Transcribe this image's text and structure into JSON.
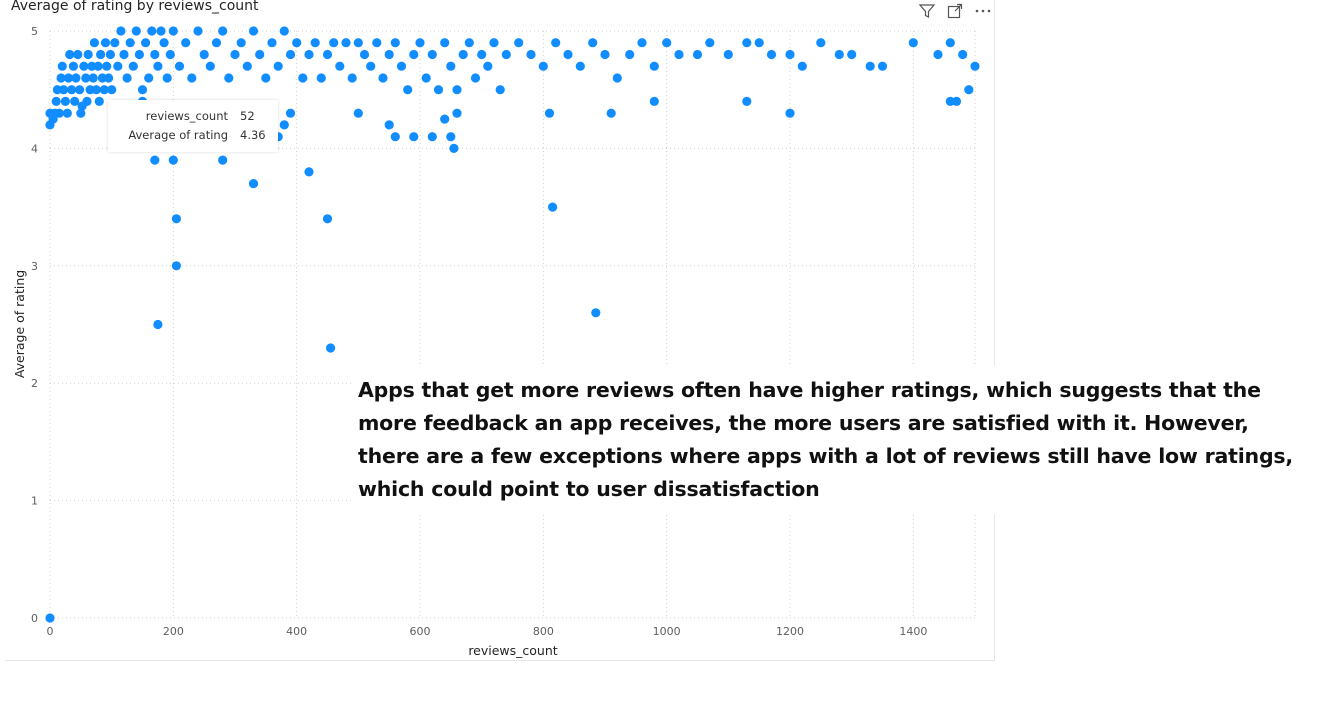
{
  "visual": {
    "title": "Average of rating by reviews_count"
  },
  "header_icons": [
    {
      "name": "filter-icon"
    },
    {
      "name": "focus-mode-icon"
    },
    {
      "name": "more-options-icon"
    }
  ],
  "tooltip": {
    "rows": [
      {
        "label": "reviews_count",
        "value": "52"
      },
      {
        "label": "Average of rating",
        "value": "4.36"
      }
    ]
  },
  "annotation": {
    "text": "Apps that get more reviews often have higher ratings, which suggests that the more feedback an app receives, the more users are satisfied with it. However, there are a few exceptions where apps with a lot of reviews still have low ratings, which could point to user dissatisfaction"
  },
  "colors": {
    "marker": "#118DFF",
    "gridline": "#d0d0d0",
    "axis_text": "#605e5c"
  },
  "chart_data": {
    "type": "scatter",
    "title": "Average of rating by reviews_count",
    "xlabel": "reviews_count",
    "ylabel": "Average of rating",
    "xlim": [
      0,
      1500
    ],
    "ylim": [
      0,
      5
    ],
    "x_ticks": [
      "0",
      "200",
      "400",
      "600",
      "800",
      "1000",
      "1200",
      "1400"
    ],
    "y_ticks": [
      "0",
      "1",
      "2",
      "3",
      "4",
      "5"
    ],
    "grid": true,
    "series": [
      {
        "points": [
          [
            0,
            0
          ],
          [
            0,
            4.2
          ],
          [
            0,
            4.3
          ],
          [
            5,
            4.25
          ],
          [
            8,
            4.3
          ],
          [
            10,
            4.4
          ],
          [
            12,
            4.5
          ],
          [
            15,
            4.3
          ],
          [
            18,
            4.6
          ],
          [
            20,
            4.7
          ],
          [
            22,
            4.5
          ],
          [
            25,
            4.4
          ],
          [
            28,
            4.3
          ],
          [
            30,
            4.6
          ],
          [
            32,
            4.8
          ],
          [
            35,
            4.5
          ],
          [
            38,
            4.7
          ],
          [
            40,
            4.4
          ],
          [
            42,
            4.6
          ],
          [
            45,
            4.8
          ],
          [
            48,
            4.5
          ],
          [
            50,
            4.3
          ],
          [
            52,
            4.36
          ],
          [
            55,
            4.7
          ],
          [
            58,
            4.6
          ],
          [
            60,
            4.4
          ],
          [
            62,
            4.8
          ],
          [
            65,
            4.5
          ],
          [
            68,
            4.7
          ],
          [
            70,
            4.6
          ],
          [
            72,
            4.9
          ],
          [
            75,
            4.5
          ],
          [
            78,
            4.7
          ],
          [
            80,
            4.4
          ],
          [
            82,
            4.8
          ],
          [
            85,
            4.6
          ],
          [
            88,
            4.5
          ],
          [
            90,
            4.9
          ],
          [
            92,
            4.7
          ],
          [
            95,
            4.6
          ],
          [
            98,
            4.8
          ],
          [
            100,
            4.5
          ],
          [
            105,
            4.9
          ],
          [
            110,
            4.7
          ],
          [
            115,
            5.0
          ],
          [
            120,
            4.8
          ],
          [
            125,
            4.6
          ],
          [
            130,
            4.9
          ],
          [
            135,
            4.7
          ],
          [
            140,
            5.0
          ],
          [
            145,
            4.8
          ],
          [
            150,
            4.5
          ],
          [
            155,
            4.9
          ],
          [
            160,
            4.6
          ],
          [
            165,
            5.0
          ],
          [
            170,
            4.8
          ],
          [
            175,
            4.7
          ],
          [
            180,
            5.0
          ],
          [
            185,
            4.9
          ],
          [
            190,
            4.6
          ],
          [
            195,
            4.8
          ],
          [
            200,
            5.0
          ],
          [
            210,
            4.7
          ],
          [
            220,
            4.9
          ],
          [
            230,
            4.6
          ],
          [
            240,
            5.0
          ],
          [
            250,
            4.8
          ],
          [
            260,
            4.7
          ],
          [
            270,
            4.9
          ],
          [
            280,
            5.0
          ],
          [
            290,
            4.6
          ],
          [
            300,
            4.8
          ],
          [
            310,
            4.9
          ],
          [
            320,
            4.7
          ],
          [
            330,
            5.0
          ],
          [
            340,
            4.8
          ],
          [
            350,
            4.6
          ],
          [
            360,
            4.9
          ],
          [
            370,
            4.7
          ],
          [
            380,
            5.0
          ],
          [
            390,
            4.8
          ],
          [
            400,
            4.9
          ],
          [
            410,
            4.6
          ],
          [
            420,
            4.8
          ],
          [
            430,
            4.9
          ],
          [
            440,
            4.6
          ],
          [
            450,
            4.8
          ],
          [
            460,
            4.9
          ],
          [
            470,
            4.7
          ],
          [
            480,
            4.9
          ],
          [
            490,
            4.6
          ],
          [
            500,
            4.9
          ],
          [
            510,
            4.8
          ],
          [
            520,
            4.7
          ],
          [
            530,
            4.9
          ],
          [
            540,
            4.6
          ],
          [
            550,
            4.8
          ],
          [
            560,
            4.9
          ],
          [
            570,
            4.7
          ],
          [
            580,
            4.5
          ],
          [
            590,
            4.8
          ],
          [
            600,
            4.9
          ],
          [
            610,
            4.6
          ],
          [
            620,
            4.8
          ],
          [
            630,
            4.5
          ],
          [
            640,
            4.9
          ],
          [
            650,
            4.7
          ],
          [
            660,
            4.5
          ],
          [
            670,
            4.8
          ],
          [
            680,
            4.9
          ],
          [
            690,
            4.6
          ],
          [
            700,
            4.8
          ],
          [
            710,
            4.7
          ],
          [
            720,
            4.9
          ],
          [
            730,
            4.5
          ],
          [
            740,
            4.8
          ],
          [
            760,
            4.9
          ],
          [
            780,
            4.8
          ],
          [
            800,
            4.7
          ],
          [
            820,
            4.9
          ],
          [
            840,
            4.8
          ],
          [
            860,
            4.7
          ],
          [
            880,
            4.9
          ],
          [
            900,
            4.8
          ],
          [
            920,
            4.6
          ],
          [
            940,
            4.8
          ],
          [
            960,
            4.9
          ],
          [
            980,
            4.7
          ],
          [
            1000,
            4.9
          ],
          [
            1020,
            4.8
          ],
          [
            1050,
            4.8
          ],
          [
            1070,
            4.9
          ],
          [
            1100,
            4.8
          ],
          [
            1130,
            4.9
          ],
          [
            1150,
            4.9
          ],
          [
            1170,
            4.8
          ],
          [
            1200,
            4.8
          ],
          [
            1220,
            4.7
          ],
          [
            1250,
            4.9
          ],
          [
            1280,
            4.8
          ],
          [
            1300,
            4.8
          ],
          [
            1330,
            4.7
          ],
          [
            1350,
            4.7
          ],
          [
            1400,
            4.9
          ],
          [
            1440,
            4.8
          ],
          [
            1460,
            4.9
          ],
          [
            1480,
            4.8
          ],
          [
            1500,
            4.7
          ],
          [
            150,
            4.4
          ],
          [
            160,
            4.2
          ],
          [
            190,
            4.1
          ],
          [
            170,
            3.9
          ],
          [
            200,
            3.9
          ],
          [
            280,
            3.9
          ],
          [
            330,
            3.7
          ],
          [
            420,
            3.8
          ],
          [
            370,
            4.1
          ],
          [
            380,
            4.2
          ],
          [
            390,
            4.3
          ],
          [
            500,
            4.3
          ],
          [
            550,
            4.2
          ],
          [
            560,
            4.1
          ],
          [
            590,
            4.1
          ],
          [
            620,
            4.1
          ],
          [
            650,
            4.1
          ],
          [
            655,
            4.0
          ],
          [
            640,
            4.25
          ],
          [
            660,
            4.3
          ],
          [
            810,
            4.3
          ],
          [
            910,
            4.3
          ],
          [
            980,
            4.4
          ],
          [
            1130,
            4.4
          ],
          [
            1200,
            4.3
          ],
          [
            1460,
            4.4
          ],
          [
            1470,
            4.4
          ],
          [
            1490,
            4.5
          ],
          [
            205,
            3.4
          ],
          [
            450,
            3.4
          ],
          [
            815,
            3.5
          ],
          [
            205,
            3.0
          ],
          [
            175,
            2.5
          ],
          [
            885,
            2.6
          ],
          [
            455,
            2.3
          ]
        ]
      }
    ]
  }
}
